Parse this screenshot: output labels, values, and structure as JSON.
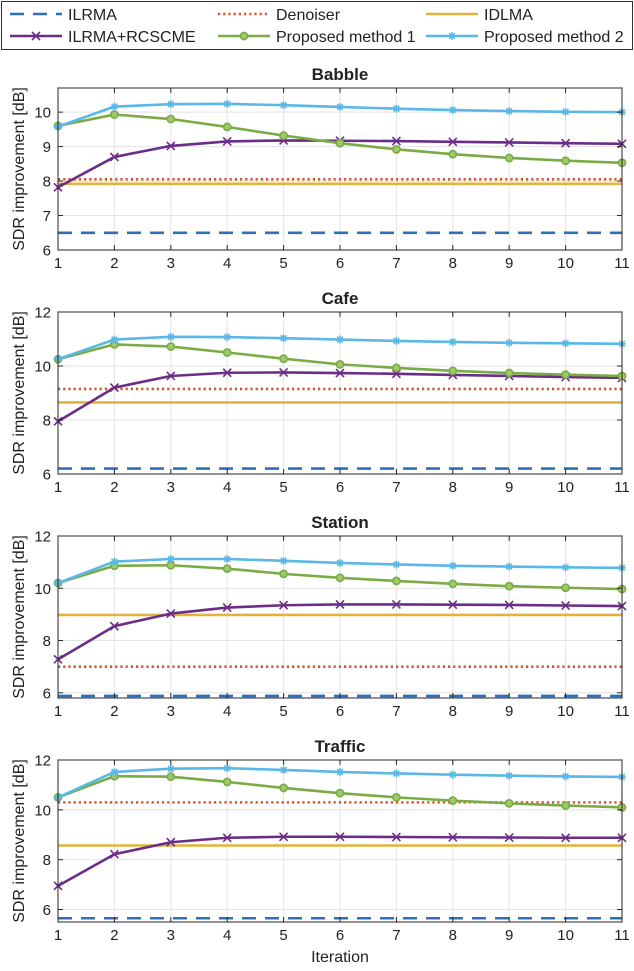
{
  "chart_data": {
    "type": "line",
    "xlabel": "Iteration",
    "x": [
      1,
      2,
      3,
      4,
      5,
      6,
      7,
      8,
      9,
      10,
      11
    ],
    "legend": {
      "placement": "top",
      "entries": [
        {
          "name": "ILRMA",
          "color": "#2e6fb7",
          "style": "dashed",
          "marker": "none"
        },
        {
          "name": "Denoiser",
          "color": "#d4542a",
          "style": "dotted",
          "marker": "none"
        },
        {
          "name": "IDLMA",
          "color": "#e0b43c",
          "style": "solid",
          "marker": "none"
        },
        {
          "name": "ILRMA+RCSCME",
          "color": "#6b2d86",
          "style": "solid",
          "marker": "x"
        },
        {
          "name": "Proposed method 1",
          "color": "#7aab45",
          "style": "solid",
          "marker": "circle"
        },
        {
          "name": "Proposed method 2",
          "color": "#5bb7e6",
          "style": "solid",
          "marker": "asterisk"
        }
      ]
    },
    "panels": [
      {
        "title": "Babble",
        "ylabel": "SDR improvement [dB]",
        "ylim": [
          6,
          10.7
        ],
        "yticks": [
          6,
          7,
          8,
          9,
          10
        ],
        "grid": true,
        "series": [
          {
            "name": "ILRMA",
            "values": [
              6.5,
              6.5,
              6.5,
              6.5,
              6.5,
              6.5,
              6.5,
              6.5,
              6.5,
              6.5,
              6.5
            ]
          },
          {
            "name": "Denoiser",
            "values": [
              8.05,
              8.05,
              8.05,
              8.05,
              8.05,
              8.05,
              8.05,
              8.05,
              8.05,
              8.05,
              8.05
            ]
          },
          {
            "name": "IDLMA",
            "values": [
              7.92,
              7.92,
              7.92,
              7.92,
              7.92,
              7.92,
              7.92,
              7.92,
              7.92,
              7.92,
              7.92
            ]
          },
          {
            "name": "ILRMA+RCSCME",
            "values": [
              7.82,
              8.7,
              9.02,
              9.15,
              9.18,
              9.17,
              9.16,
              9.14,
              9.12,
              9.1,
              9.08
            ]
          },
          {
            "name": "Proposed method 1",
            "values": [
              9.6,
              9.93,
              9.8,
              9.57,
              9.32,
              9.1,
              8.92,
              8.78,
              8.67,
              8.59,
              8.53
            ]
          },
          {
            "name": "Proposed method 2",
            "values": [
              9.58,
              10.16,
              10.23,
              10.24,
              10.2,
              10.15,
              10.1,
              10.06,
              10.03,
              10.01,
              10.0
            ]
          }
        ]
      },
      {
        "title": "Cafe",
        "ylabel": "SDR improvement [dB]",
        "ylim": [
          6,
          12
        ],
        "yticks": [
          6,
          8,
          10,
          12
        ],
        "grid": true,
        "series": [
          {
            "name": "ILRMA",
            "values": [
              6.2,
              6.2,
              6.2,
              6.2,
              6.2,
              6.2,
              6.2,
              6.2,
              6.2,
              6.2,
              6.2
            ]
          },
          {
            "name": "Denoiser",
            "values": [
              9.15,
              9.15,
              9.15,
              9.15,
              9.15,
              9.15,
              9.15,
              9.15,
              9.15,
              9.15,
              9.15
            ]
          },
          {
            "name": "IDLMA",
            "values": [
              8.65,
              8.65,
              8.65,
              8.65,
              8.65,
              8.65,
              8.65,
              8.65,
              8.65,
              8.65,
              8.65
            ]
          },
          {
            "name": "ILRMA+RCSCME",
            "values": [
              7.95,
              9.2,
              9.63,
              9.75,
              9.76,
              9.74,
              9.71,
              9.67,
              9.63,
              9.59,
              9.56
            ]
          },
          {
            "name": "Proposed method 1",
            "values": [
              10.25,
              10.8,
              10.72,
              10.5,
              10.27,
              10.06,
              9.93,
              9.82,
              9.74,
              9.68,
              9.63
            ]
          },
          {
            "name": "Proposed method 2",
            "values": [
              10.25,
              10.98,
              11.08,
              11.07,
              11.03,
              10.98,
              10.93,
              10.89,
              10.86,
              10.84,
              10.82
            ]
          }
        ]
      },
      {
        "title": "Station",
        "ylabel": "SDR improvement [dB]",
        "ylim": [
          5.8,
          12
        ],
        "yticks": [
          6,
          8,
          10,
          12
        ],
        "grid": true,
        "series": [
          {
            "name": "ILRMA",
            "values": [
              5.88,
              5.88,
              5.88,
              5.88,
              5.88,
              5.88,
              5.88,
              5.88,
              5.88,
              5.88,
              5.88
            ]
          },
          {
            "name": "Denoiser",
            "values": [
              7.0,
              7.0,
              7.0,
              7.0,
              7.0,
              7.0,
              7.0,
              7.0,
              7.0,
              7.0,
              7.0
            ]
          },
          {
            "name": "IDLMA",
            "values": [
              8.98,
              8.98,
              8.98,
              8.98,
              8.98,
              8.98,
              8.98,
              8.98,
              8.98,
              8.98,
              8.98
            ]
          },
          {
            "name": "ILRMA+RCSCME",
            "values": [
              7.28,
              8.55,
              9.03,
              9.26,
              9.35,
              9.38,
              9.38,
              9.37,
              9.36,
              9.34,
              9.32
            ]
          },
          {
            "name": "Proposed method 1",
            "values": [
              10.2,
              10.86,
              10.88,
              10.75,
              10.55,
              10.4,
              10.28,
              10.17,
              10.08,
              10.02,
              9.97
            ]
          },
          {
            "name": "Proposed method 2",
            "values": [
              10.2,
              11.02,
              11.12,
              11.12,
              11.05,
              10.97,
              10.91,
              10.86,
              10.83,
              10.8,
              10.78
            ]
          }
        ]
      },
      {
        "title": "Traffic",
        "ylabel": "SDR improvement [dB]",
        "ylim": [
          5.5,
          12
        ],
        "yticks": [
          6,
          8,
          10,
          12
        ],
        "grid": true,
        "series": [
          {
            "name": "ILRMA",
            "values": [
              5.65,
              5.65,
              5.65,
              5.65,
              5.65,
              5.65,
              5.65,
              5.65,
              5.65,
              5.65,
              5.65
            ]
          },
          {
            "name": "Denoiser",
            "values": [
              10.3,
              10.3,
              10.3,
              10.3,
              10.3,
              10.3,
              10.3,
              10.3,
              10.3,
              10.3,
              10.3
            ]
          },
          {
            "name": "IDLMA",
            "values": [
              8.57,
              8.57,
              8.57,
              8.57,
              8.57,
              8.57,
              8.57,
              8.57,
              8.57,
              8.57,
              8.57
            ]
          },
          {
            "name": "ILRMA+RCSCME",
            "values": [
              6.95,
              8.22,
              8.7,
              8.88,
              8.92,
              8.92,
              8.91,
              8.9,
              8.89,
              8.88,
              8.88
            ]
          },
          {
            "name": "Proposed method 1",
            "values": [
              10.5,
              11.35,
              11.33,
              11.12,
              10.88,
              10.67,
              10.5,
              10.37,
              10.26,
              10.17,
              10.1
            ]
          },
          {
            "name": "Proposed method 2",
            "values": [
              10.5,
              11.52,
              11.65,
              11.67,
              11.6,
              11.52,
              11.46,
              11.41,
              11.37,
              11.34,
              11.32
            ]
          }
        ]
      }
    ]
  }
}
